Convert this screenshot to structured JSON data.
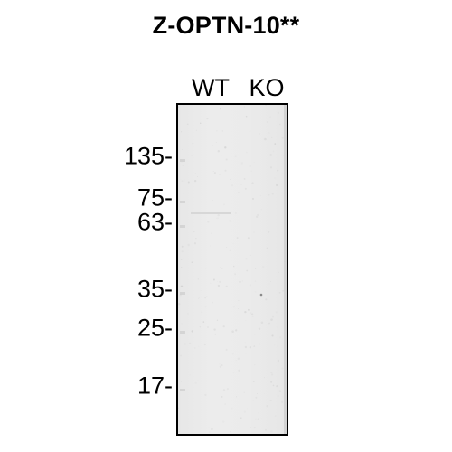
{
  "title": "Z-OPTN-10**",
  "lanes": [
    {
      "label": "WT"
    },
    {
      "label": "KO"
    }
  ],
  "markers": [
    {
      "label": "135-",
      "kda": 135
    },
    {
      "label": "75-",
      "kda": 75
    },
    {
      "label": "63-",
      "kda": 63
    },
    {
      "label": "35-",
      "kda": 35
    },
    {
      "label": "25-",
      "kda": 25
    },
    {
      "label": "17-",
      "kda": 17
    }
  ],
  "colors": {
    "membrane": "#ebebeb",
    "text": "#000000",
    "border": "#000000"
  }
}
